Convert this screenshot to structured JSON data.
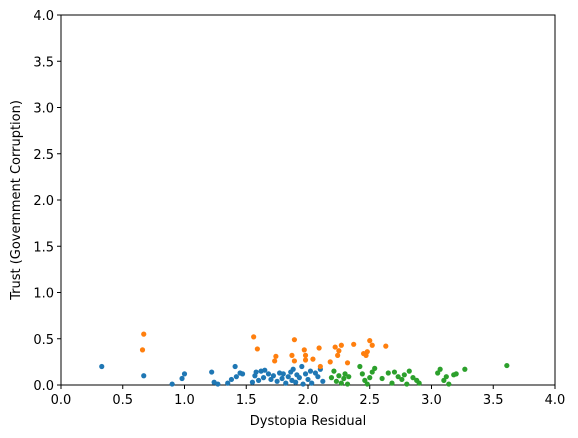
{
  "chart_data": {
    "type": "scatter",
    "x_label": "Dystopia Residual",
    "y_label": "Trust (Government Corruption)",
    "xlim": [
      0,
      4
    ],
    "ylim": [
      0,
      4
    ],
    "xticks": [
      {
        "value": 0,
        "label": "0.0"
      },
      {
        "value": 0.5,
        "label": "0.5"
      },
      {
        "value": 1,
        "label": "1.0"
      },
      {
        "value": 1.5,
        "label": "1.5"
      },
      {
        "value": 2,
        "label": "2.0"
      },
      {
        "value": 2.5,
        "label": "2.5"
      },
      {
        "value": 3,
        "label": "3.0"
      },
      {
        "value": 3.5,
        "label": "3.5"
      },
      {
        "value": 4,
        "label": "4.0"
      }
    ],
    "yticks": [
      {
        "value": 0,
        "label": "0.0"
      },
      {
        "value": 0.5,
        "label": "0.5"
      },
      {
        "value": 1,
        "label": "1.0"
      },
      {
        "value": 1.5,
        "label": "1.5"
      },
      {
        "value": 2,
        "label": "2.0"
      },
      {
        "value": 2.5,
        "label": "2.5"
      },
      {
        "value": 3,
        "label": "3.0"
      },
      {
        "value": 3.5,
        "label": "3.5"
      },
      {
        "value": 4,
        "label": "4.0"
      }
    ],
    "series": [
      {
        "color": "#1f77b4",
        "x": [
          0.33,
          0.67,
          0.9,
          0.98,
          1.0,
          1.22,
          1.24,
          1.27,
          1.35,
          1.38,
          1.41,
          1.42,
          1.45,
          1.47,
          1.55,
          1.57,
          1.58,
          1.6,
          1.62,
          1.64,
          1.65,
          1.68,
          1.7,
          1.72,
          1.75,
          1.77,
          1.79,
          1.8,
          1.82,
          1.84,
          1.86,
          1.87,
          1.88,
          1.9,
          1.91,
          1.93,
          1.95,
          1.96,
          1.98,
          2.0,
          2.02,
          2.03,
          2.06,
          2.08,
          2.1,
          2.12
        ],
        "values": [
          0.2,
          0.1,
          0.01,
          0.07,
          0.12,
          0.14,
          0.03,
          0.01,
          0.02,
          0.06,
          0.2,
          0.09,
          0.13,
          0.12,
          0.03,
          0.1,
          0.14,
          0.05,
          0.15,
          0.08,
          0.16,
          0.12,
          0.06,
          0.1,
          0.04,
          0.13,
          0.07,
          0.12,
          0.02,
          0.09,
          0.14,
          0.05,
          0.17,
          0.03,
          0.11,
          0.08,
          0.2,
          0.01,
          0.12,
          0.06,
          0.15,
          0.02,
          0.13,
          0.09,
          0.17,
          0.04
        ]
      },
      {
        "color": "#ff7f0e",
        "x": [
          0.66,
          0.67,
          1.56,
          1.59,
          1.73,
          1.74,
          1.87,
          1.89,
          1.89,
          1.97,
          1.98,
          1.98,
          2.04,
          2.09,
          2.1,
          2.18,
          2.22,
          2.24,
          2.25,
          2.27,
          2.32,
          2.37,
          2.45,
          2.47,
          2.48,
          2.5,
          2.52,
          2.63
        ],
        "values": [
          0.38,
          0.55,
          0.52,
          0.39,
          0.26,
          0.31,
          0.32,
          0.49,
          0.26,
          0.38,
          0.27,
          0.32,
          0.28,
          0.4,
          0.2,
          0.25,
          0.41,
          0.32,
          0.37,
          0.43,
          0.24,
          0.44,
          0.34,
          0.32,
          0.36,
          0.48,
          0.43,
          0.42
        ]
      },
      {
        "color": "#2ca02c",
        "x": [
          2.19,
          2.21,
          2.23,
          2.25,
          2.27,
          2.29,
          2.3,
          2.32,
          2.33,
          2.42,
          2.44,
          2.46,
          2.48,
          2.5,
          2.52,
          2.54,
          2.6,
          2.65,
          2.68,
          2.7,
          2.73,
          2.76,
          2.78,
          2.8,
          2.82,
          2.85,
          2.88,
          2.9,
          3.05,
          3.07,
          3.1,
          3.12,
          3.14,
          3.18,
          3.2,
          3.27,
          3.61
        ],
        "values": [
          0.08,
          0.15,
          0.04,
          0.1,
          0.02,
          0.07,
          0.12,
          0.01,
          0.09,
          0.2,
          0.12,
          0.05,
          0.01,
          0.08,
          0.14,
          0.18,
          0.07,
          0.13,
          0.02,
          0.14,
          0.09,
          0.06,
          0.11,
          0.01,
          0.15,
          0.08,
          0.05,
          0.02,
          0.13,
          0.17,
          0.05,
          0.09,
          0.01,
          0.11,
          0.12,
          0.17,
          0.21
        ]
      }
    ]
  }
}
